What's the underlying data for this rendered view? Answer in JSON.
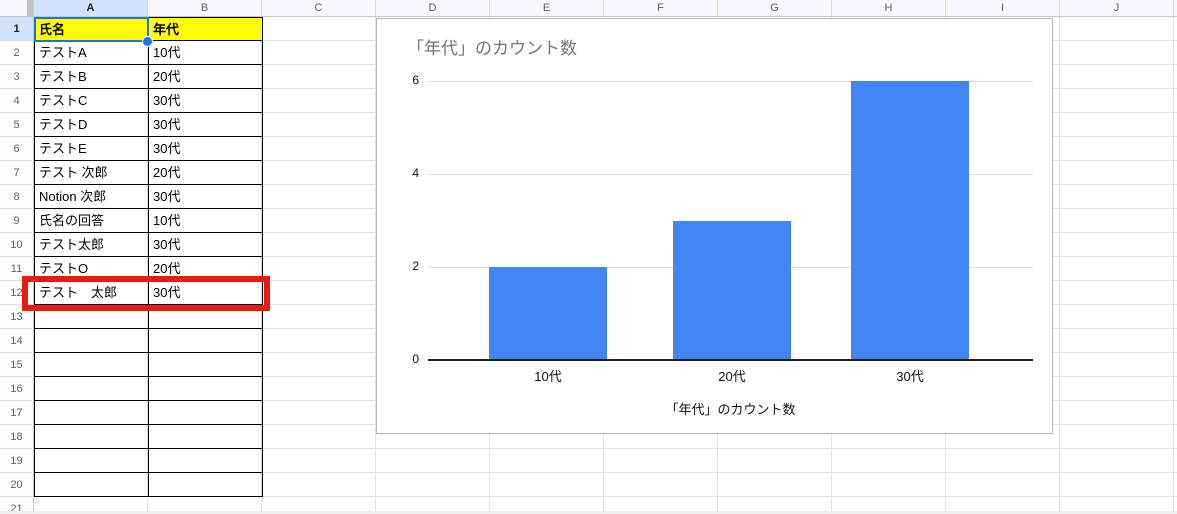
{
  "sheet": {
    "columns": [
      "A",
      "B",
      "C",
      "D",
      "E",
      "F",
      "G",
      "H",
      "I",
      "J"
    ],
    "row_numbers": [
      "1",
      "2",
      "3",
      "4",
      "5",
      "6",
      "7",
      "8",
      "9",
      "10",
      "11",
      "12",
      "13",
      "14",
      "15",
      "16",
      "17",
      "18",
      "19",
      "20",
      "21"
    ],
    "selected_column": "A",
    "selected_row": "1",
    "selected_cell": "A1",
    "table": {
      "headers": {
        "0": "氏名",
        "1": "年代"
      },
      "rows": [
        {
          "row": 2,
          "name": "テストA",
          "age": "10代"
        },
        {
          "row": 3,
          "name": "テストB",
          "age": "20代"
        },
        {
          "row": 4,
          "name": "テストC",
          "age": "30代"
        },
        {
          "row": 5,
          "name": "テストD",
          "age": "30代"
        },
        {
          "row": 6,
          "name": "テストE",
          "age": "30代"
        },
        {
          "row": 7,
          "name": "テスト 次郎",
          "age": "20代"
        },
        {
          "row": 8,
          "name": "Notion 次郎",
          "age": "30代"
        },
        {
          "row": 9,
          "name": "氏名の回答",
          "age": "10代"
        },
        {
          "row": 10,
          "name": "テスト太郎",
          "age": "30代"
        },
        {
          "row": 11,
          "name": "テストO",
          "age": "20代"
        },
        {
          "row": 12,
          "name": "テスト　太郎",
          "age": "30代"
        },
        {
          "row": 13,
          "name": "",
          "age": ""
        },
        {
          "row": 14,
          "name": "",
          "age": ""
        },
        {
          "row": 15,
          "name": "",
          "age": ""
        },
        {
          "row": 16,
          "name": "",
          "age": ""
        },
        {
          "row": 17,
          "name": "",
          "age": ""
        },
        {
          "row": 18,
          "name": "",
          "age": ""
        },
        {
          "row": 19,
          "name": "",
          "age": ""
        },
        {
          "row": 20,
          "name": "",
          "age": ""
        }
      ],
      "highlighted_row": 12
    }
  },
  "chart_data": {
    "type": "bar",
    "title": "「年代」のカウント数",
    "categories": [
      "10代",
      "20代",
      "30代"
    ],
    "values": [
      2,
      3,
      6
    ],
    "xlabel": "「年代」のカウント数",
    "ylabel": "",
    "ylim": [
      0,
      6
    ],
    "yticks": [
      0,
      2,
      4,
      6
    ],
    "grid": true,
    "legend": false,
    "bar_color": "#4285f4"
  },
  "colors": {
    "header_cell_fill": "#ffff00",
    "selection_blue": "#1a73e8",
    "selected_header_fill": "#d3e3fd",
    "annotation_red": "#e71c0d",
    "bar_blue": "#4285f4",
    "chart_title_gray": "#757575"
  }
}
